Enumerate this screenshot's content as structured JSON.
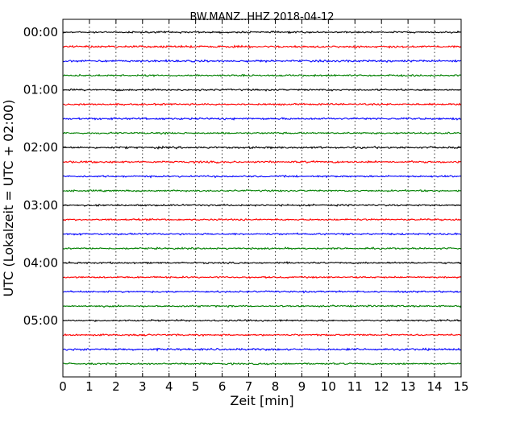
{
  "chart_data": {
    "type": "line",
    "title": "BW.MANZ..HHZ 2018-04-12",
    "xlabel": "Zeit  [min]",
    "ylabel": "UTC (Lokalzeit = UTC + 02:00)",
    "xlim": [
      0,
      15
    ],
    "x_ticks": [
      "0",
      "1",
      "2",
      "3",
      "4",
      "5",
      "6",
      "7",
      "8",
      "9",
      "10",
      "11",
      "12",
      "13",
      "14",
      "15"
    ],
    "y_ticks": [
      "00:00",
      "01:00",
      "02:00",
      "03:00",
      "04:00",
      "05:00"
    ],
    "grid": "vertical dotted lines at each minute",
    "trace_colors": [
      "#000000",
      "#ff0000",
      "#0000ff",
      "#008000"
    ],
    "series": [
      {
        "row": 0,
        "color": "#000000",
        "noise": 0.3
      },
      {
        "row": 1,
        "color": "#ff0000",
        "noise": 0.35
      },
      {
        "row": 2,
        "color": "#0000ff",
        "noise": 0.35
      },
      {
        "row": 3,
        "color": "#008000",
        "noise": 0.3
      },
      {
        "row": 4,
        "color": "#000000",
        "noise": 0.3
      },
      {
        "row": 5,
        "color": "#ff0000",
        "noise": 0.3
      },
      {
        "row": 6,
        "color": "#0000ff",
        "noise": 0.35
      },
      {
        "row": 7,
        "color": "#008000",
        "noise": 0.3
      },
      {
        "row": 8,
        "color": "#000000",
        "noise": 0.35
      },
      {
        "row": 9,
        "color": "#ff0000",
        "noise": 0.35
      },
      {
        "row": 10,
        "color": "#0000ff",
        "noise": 0.3
      },
      {
        "row": 11,
        "color": "#008000",
        "noise": 0.3
      },
      {
        "row": 12,
        "color": "#000000",
        "noise": 0.3
      },
      {
        "row": 13,
        "color": "#ff0000",
        "noise": 0.3
      },
      {
        "row": 14,
        "color": "#0000ff",
        "noise": 0.3
      },
      {
        "row": 15,
        "color": "#008000",
        "noise": 0.3
      },
      {
        "row": 16,
        "color": "#000000",
        "noise": 0.3
      },
      {
        "row": 17,
        "color": "#ff0000",
        "noise": 0.3
      },
      {
        "row": 18,
        "color": "#0000ff",
        "noise": 0.3
      },
      {
        "row": 19,
        "color": "#008000",
        "noise": 0.3
      },
      {
        "row": 20,
        "color": "#000000",
        "noise": 0.3
      },
      {
        "row": 21,
        "color": "#ff0000",
        "noise": 0.3
      },
      {
        "row": 22,
        "color": "#0000ff",
        "noise": 0.35
      },
      {
        "row": 23,
        "color": "#008000",
        "noise": 0.3
      }
    ]
  }
}
